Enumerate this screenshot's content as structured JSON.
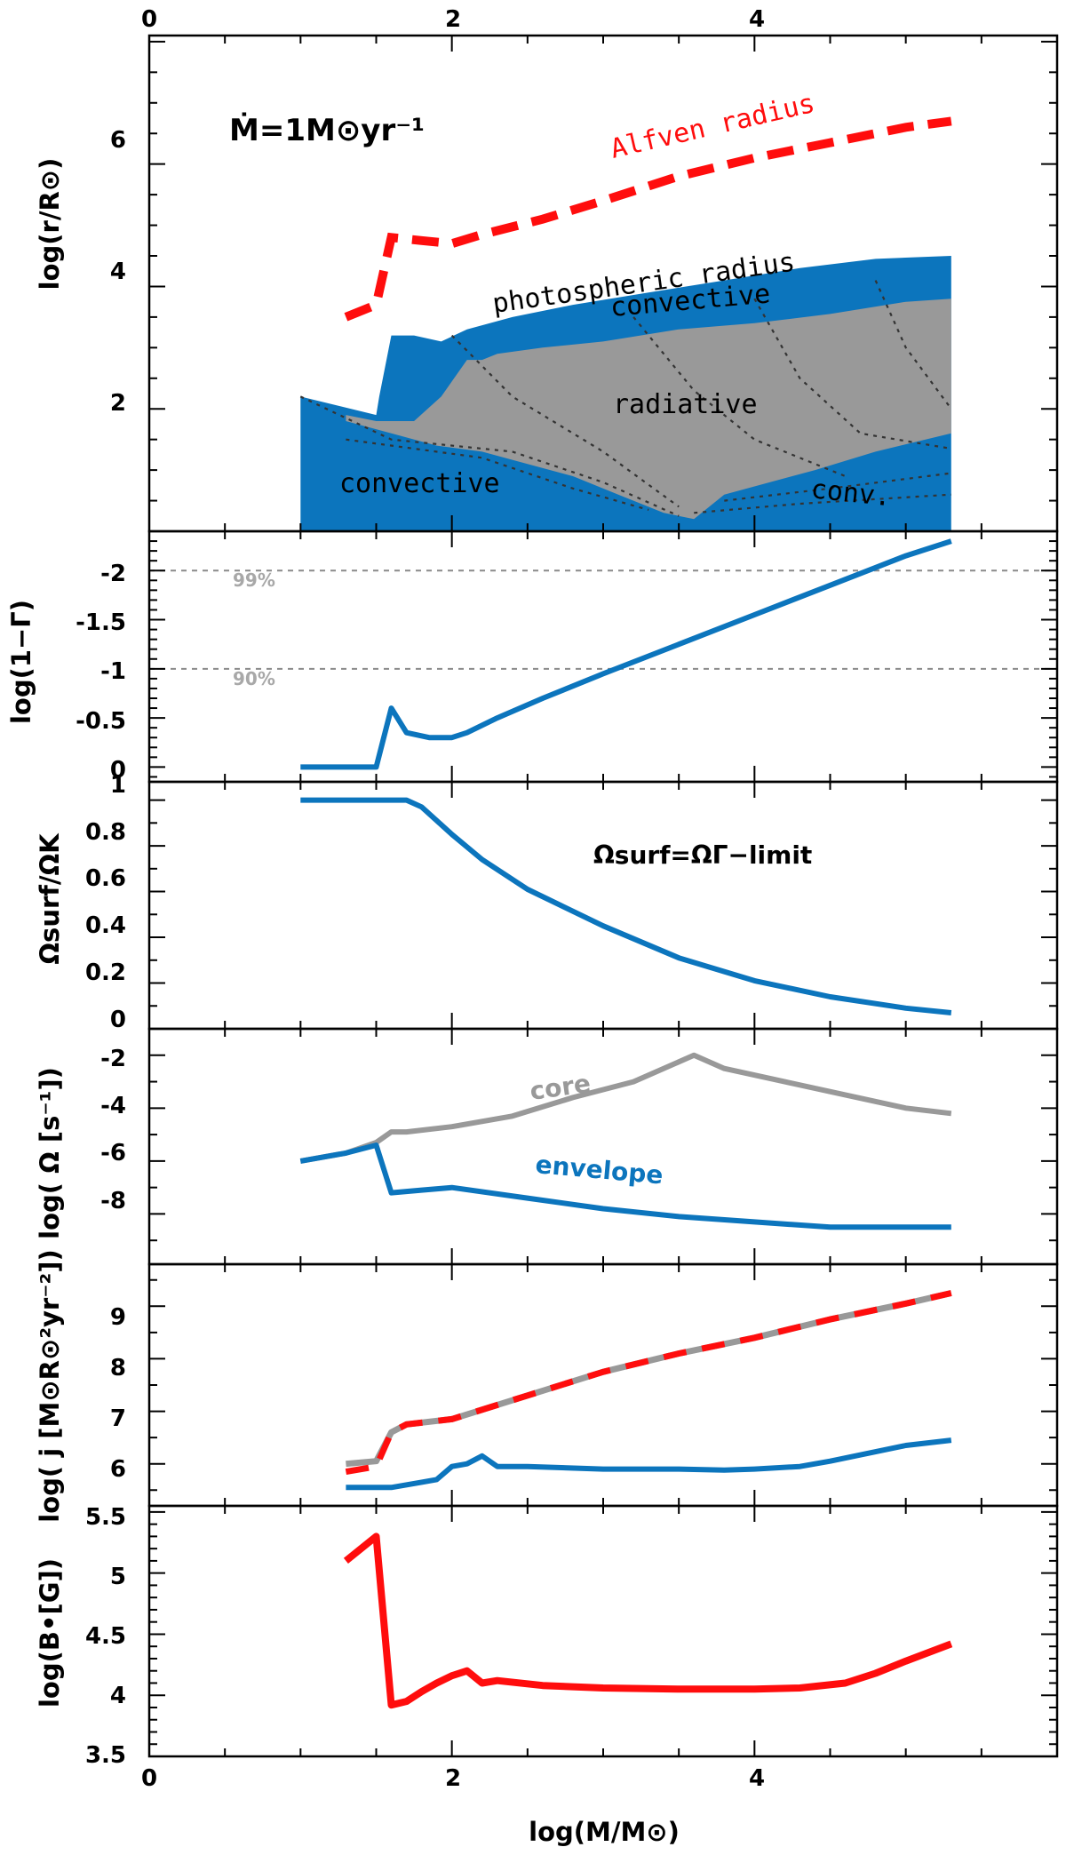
{
  "colors": {
    "blue": "#0c75bd",
    "gray": "#999999",
    "red": "#ff0d0d",
    "dash": "#8a8a8a"
  },
  "chart_data": [
    {
      "type": "area",
      "panel": "structure",
      "ylabel": "log(r/R⊙)",
      "xlim": [
        0,
        6
      ],
      "ylim": [
        0,
        8.1
      ],
      "top_ticks": [
        "0",
        "2",
        "4"
      ],
      "yticks": [
        2,
        4,
        6
      ],
      "title_formula": "Ṁ=1M⊙yr⁻¹",
      "photosphere": {
        "x": [
          1.0,
          1.5,
          1.52,
          1.6,
          1.75,
          1.93,
          2.1,
          2.4,
          2.8,
          3.3,
          3.8,
          4.3,
          4.8,
          5.3
        ],
        "y": [
          2.2,
          1.9,
          2.2,
          3.2,
          3.2,
          3.1,
          3.3,
          3.5,
          3.7,
          3.9,
          4.1,
          4.3,
          4.45,
          4.5
        ]
      },
      "convective_lower_boundary": {
        "x": [
          1.0,
          1.3,
          1.6,
          1.9,
          2.2,
          2.5,
          2.8,
          3.1,
          3.4,
          3.6,
          3.8,
          4.1,
          4.4,
          4.8,
          5.3
        ],
        "y": [
          2.0,
          1.8,
          1.6,
          1.4,
          1.3,
          1.1,
          0.9,
          0.6,
          0.3,
          0.2,
          0.6,
          0.8,
          1.0,
          1.3,
          1.6
        ]
      },
      "radiative_upper_boundary": {
        "x": [
          1.3,
          1.5,
          1.75,
          1.93,
          2.1,
          2.2,
          2.3,
          2.6,
          3.0,
          3.5,
          4.0,
          4.5,
          5.0,
          5.3
        ],
        "y": [
          1.9,
          1.8,
          1.8,
          2.2,
          2.8,
          2.8,
          2.9,
          3.0,
          3.1,
          3.3,
          3.4,
          3.55,
          3.75,
          3.8
        ]
      },
      "alfven_radius": {
        "x": [
          1.3,
          1.5,
          1.6,
          1.8,
          2.0,
          2.2,
          2.6,
          3.0,
          3.5,
          4.0,
          4.5,
          5.0,
          5.3
        ],
        "y": [
          3.5,
          3.7,
          4.8,
          4.75,
          4.7,
          4.85,
          5.1,
          5.4,
          5.8,
          6.1,
          6.35,
          6.6,
          6.7
        ]
      },
      "labels": {
        "alfven": "Alfven radius",
        "photospheric": "photospheric radius",
        "conv_top": "convective",
        "radiative": "radiative",
        "conv_bottom": "convective",
        "conv_short": "conv."
      }
    },
    {
      "type": "line",
      "panel": "eddington",
      "ylabel": "log(1−Γ)",
      "yticks": [
        "-2",
        "-1.5",
        "-1",
        "-0.5",
        "0"
      ],
      "ylim": [
        0.15,
        -2.4
      ],
      "reference_lines": [
        {
          "y": -2,
          "label": "99%"
        },
        {
          "y": -1,
          "label": "90%"
        }
      ],
      "series": [
        {
          "name": "log(1-Gamma)",
          "x": [
            1.0,
            1.2,
            1.5,
            1.6,
            1.7,
            1.85,
            2.0,
            2.1,
            2.3,
            2.6,
            3.0,
            3.5,
            4.0,
            4.5,
            5.0,
            5.3
          ],
          "y": [
            0.0,
            0.0,
            0.0,
            -0.6,
            -0.35,
            -0.3,
            -0.3,
            -0.35,
            -0.5,
            -0.7,
            -0.95,
            -1.25,
            -1.55,
            -1.85,
            -2.15,
            -2.3
          ]
        }
      ]
    },
    {
      "type": "line",
      "panel": "omega_ratio",
      "ylabel": "Ωsurf/ΩK",
      "yticks": [
        "0",
        "0.2",
        "0.4",
        "0.6",
        "0.8",
        "1"
      ],
      "ylim": [
        0,
        1.08
      ],
      "annotation": "Ωsurf=ΩΓ−limit",
      "series": [
        {
          "name": "Omega_surf/Omega_K",
          "x": [
            1.0,
            1.5,
            1.7,
            1.8,
            2.0,
            2.2,
            2.5,
            3.0,
            3.5,
            4.0,
            4.5,
            5.0,
            5.3
          ],
          "y": [
            1.0,
            1.0,
            1.0,
            0.97,
            0.85,
            0.74,
            0.61,
            0.45,
            0.31,
            0.21,
            0.14,
            0.09,
            0.07
          ]
        }
      ]
    },
    {
      "type": "line",
      "panel": "omega",
      "ylabel": "log( Ω [s⁻¹])",
      "yticks": [
        "-2",
        "-4",
        "-6",
        "-8"
      ],
      "ylim": [
        -9.9,
        -1.0
      ],
      "series": [
        {
          "name": "core",
          "x": [
            1.0,
            1.3,
            1.5,
            1.6,
            1.7,
            2.0,
            2.4,
            2.8,
            3.2,
            3.6,
            3.8,
            4.2,
            4.6,
            5.0,
            5.3
          ],
          "y": [
            -6.0,
            -5.7,
            -5.3,
            -4.9,
            -4.9,
            -4.7,
            -4.3,
            -3.6,
            -3.0,
            -2.0,
            -2.5,
            -3.0,
            -3.5,
            -4.0,
            -4.2
          ]
        },
        {
          "name": "envelope",
          "x": [
            1.0,
            1.3,
            1.5,
            1.6,
            1.8,
            2.0,
            2.5,
            3.0,
            3.5,
            4.0,
            4.5,
            5.0,
            5.3
          ],
          "y": [
            -6.0,
            -5.7,
            -5.4,
            -7.2,
            -7.1,
            -7.0,
            -7.4,
            -7.8,
            -8.1,
            -8.3,
            -8.5,
            -8.5,
            -8.5
          ]
        }
      ],
      "labels": {
        "core": "core",
        "envelope": "envelope"
      }
    },
    {
      "type": "line",
      "panel": "angular_momentum",
      "ylabel": "log( j [M⊙R⊙²yr⁻²])",
      "yticks": [
        "6",
        "7",
        "8",
        "9"
      ],
      "ylim": [
        5.2,
        9.8
      ],
      "series": [
        {
          "name": "total-gray",
          "x": [
            1.3,
            1.5,
            1.6,
            1.7,
            2.0,
            2.5,
            3.0,
            3.5,
            4.0,
            4.5,
            5.0,
            5.3
          ],
          "y": [
            6.0,
            6.05,
            6.6,
            6.75,
            6.85,
            7.3,
            7.75,
            8.1,
            8.4,
            8.75,
            9.05,
            9.25
          ]
        },
        {
          "name": "total-red",
          "x": [
            1.3,
            1.5,
            1.6,
            1.7,
            2.0,
            2.5,
            3.0,
            3.5,
            4.0,
            4.5,
            5.0,
            5.3
          ],
          "y": [
            5.85,
            5.95,
            6.6,
            6.75,
            6.85,
            7.3,
            7.75,
            8.1,
            8.4,
            8.75,
            9.05,
            9.25
          ]
        },
        {
          "name": "envelope",
          "x": [
            1.3,
            1.5,
            1.6,
            1.8,
            1.9,
            2.0,
            2.1,
            2.2,
            2.3,
            2.5,
            3.0,
            3.5,
            3.8,
            4.0,
            4.3,
            4.5,
            5.0,
            5.3
          ],
          "y": [
            5.55,
            5.55,
            5.55,
            5.65,
            5.7,
            5.95,
            6.0,
            6.15,
            5.95,
            5.95,
            5.9,
            5.9,
            5.88,
            5.9,
            5.95,
            6.05,
            6.35,
            6.45
          ]
        }
      ]
    },
    {
      "type": "line",
      "panel": "magnetic_field",
      "ylabel": "log(B•[G])",
      "yticks": [
        "3.5",
        "4",
        "4.5",
        "5",
        "5.5"
      ],
      "ylim": [
        3.5,
        5.55
      ],
      "xlabel": "log(M/M⊙)",
      "xticks": [
        "0",
        "2",
        "4"
      ],
      "series": [
        {
          "name": "B",
          "x": [
            1.3,
            1.5,
            1.6,
            1.7,
            1.8,
            1.9,
            2.0,
            2.1,
            2.2,
            2.3,
            2.6,
            3.0,
            3.5,
            3.8,
            4.0,
            4.3,
            4.6,
            4.8,
            5.0,
            5.3
          ],
          "y": [
            5.1,
            5.3,
            3.92,
            3.95,
            4.03,
            4.1,
            4.16,
            4.2,
            4.1,
            4.12,
            4.08,
            4.06,
            4.05,
            4.05,
            4.05,
            4.06,
            4.1,
            4.18,
            4.28,
            4.42
          ]
        }
      ]
    }
  ]
}
